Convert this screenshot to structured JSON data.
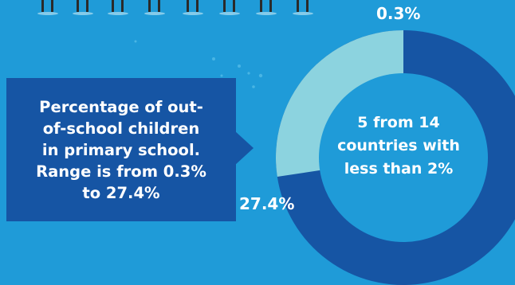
{
  "callout": {
    "lines": [
      "Percentage of out-",
      "of-school children",
      "in primary school.",
      "Range is from 0.3%",
      "to 27.4%"
    ]
  },
  "chart_data": {
    "type": "pie",
    "slices": [
      {
        "label": "0.3%",
        "value": 0.3,
        "color": "#1655a4"
      },
      {
        "label": "27.4%",
        "value": 27.4,
        "color": "#8cd3df"
      }
    ],
    "ring_fraction_light": 0.274,
    "center_text": [
      "5 from 14",
      "countries with",
      "less than 2%"
    ]
  },
  "colors": {
    "background": "#1f9bd8",
    "dark_blue": "#1655a4",
    "light_teal": "#8cd3df"
  }
}
